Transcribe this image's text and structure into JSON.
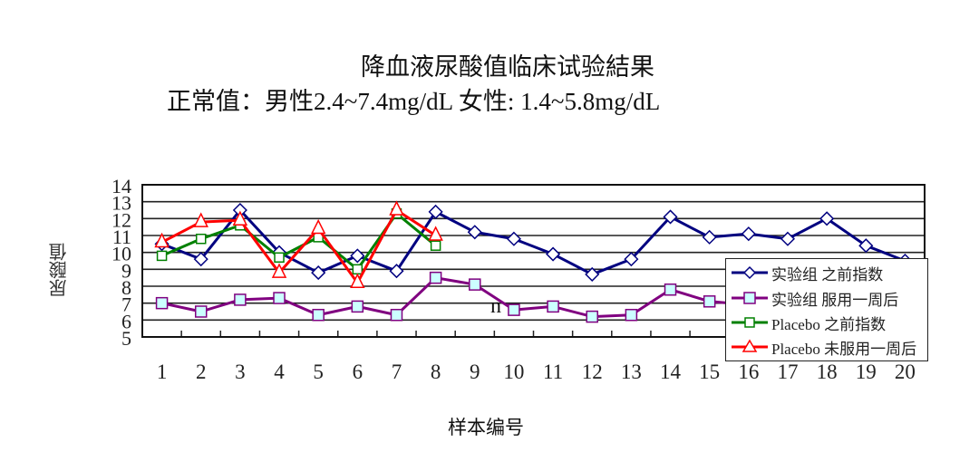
{
  "title": "降血液尿酸值临床试验結果",
  "subtitle": "正常值：男性2.4~7.4mg/dL  女性: 1.4~5.8mg/dL",
  "stray_text": "n",
  "chart_data": {
    "type": "line",
    "title": "降血液尿酸值临床试验結果",
    "subtitle": "正常值：男性2.4~7.4mg/dL  女性: 1.4~5.8mg/dL",
    "xlabel": "样本编号",
    "ylabel": "尿酸值",
    "ylim": [
      5,
      14
    ],
    "yticks": [
      5,
      6,
      7,
      8,
      9,
      10,
      11,
      12,
      13,
      14
    ],
    "grid": true,
    "legend_position": "lower right (inside)",
    "categories": [
      "1",
      "2",
      "3",
      "4",
      "5",
      "6",
      "7",
      "8",
      "9",
      "10",
      "11",
      "12",
      "13",
      "14",
      "15",
      "16",
      "17",
      "18",
      "19",
      "20"
    ],
    "series": [
      {
        "name": "实验组 之前指数",
        "color": "#000080",
        "marker": "diamond",
        "values": [
          10.5,
          9.6,
          12.5,
          10.0,
          8.8,
          9.8,
          8.9,
          12.4,
          11.2,
          10.8,
          9.9,
          8.7,
          9.6,
          12.1,
          10.9,
          11.1,
          10.8,
          12.0,
          10.4,
          9.5
        ]
      },
      {
        "name": "实验组 服用一周后",
        "color": "#800080",
        "marker": "square-filled",
        "values": [
          7.0,
          6.5,
          7.2,
          7.3,
          6.3,
          6.8,
          6.3,
          8.5,
          8.1,
          6.6,
          6.8,
          6.2,
          6.3,
          7.8,
          7.1,
          6.9,
          6.6,
          7.0,
          6.8,
          6.5
        ]
      },
      {
        "name": "Placebo 之前指数",
        "color": "#008000",
        "marker": "square",
        "values": [
          9.8,
          10.8,
          11.6,
          9.7,
          10.9,
          9.0,
          12.3,
          10.4,
          null,
          null,
          null,
          null,
          null,
          null,
          null,
          null,
          null,
          null,
          null,
          null
        ]
      },
      {
        "name": "Placebo 未服用一周后",
        "color": "#ff0000",
        "marker": "triangle",
        "values": [
          10.6,
          11.8,
          11.9,
          8.8,
          11.4,
          8.2,
          12.5,
          11.0,
          null,
          null,
          null,
          null,
          null,
          null,
          null,
          null,
          null,
          null,
          null,
          null
        ]
      }
    ]
  },
  "legend": {
    "items": [
      {
        "label": "实验组 之前指数"
      },
      {
        "label": "实验组 服用一周后"
      },
      {
        "label": "Placebo 之前指数"
      },
      {
        "label": "Placebo 未服用一周后"
      }
    ]
  }
}
